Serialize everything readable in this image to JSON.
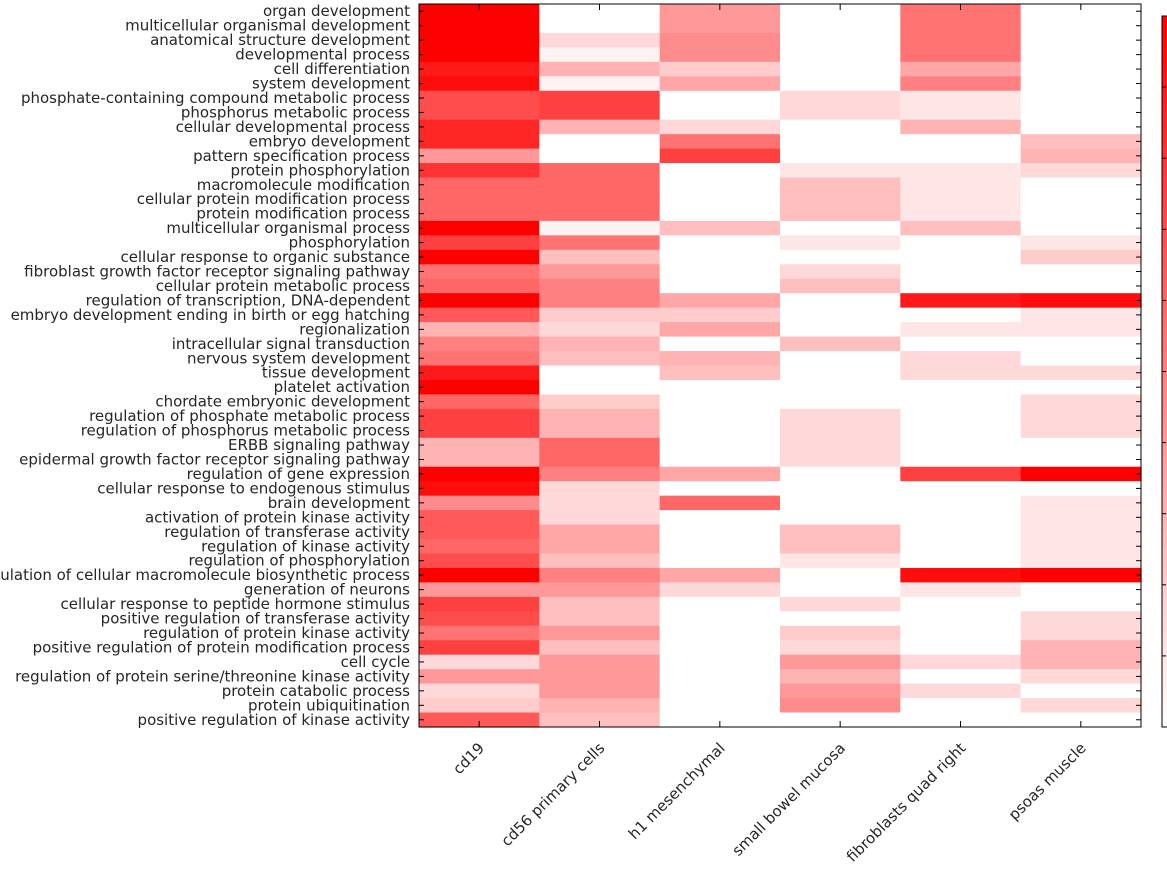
{
  "chart_data": {
    "type": "heatmap",
    "colormap": {
      "low": "#ffffff",
      "high": "#ff0000"
    },
    "value_range": [
      0,
      1
    ],
    "columns": [
      "cd19",
      "cd56 primary cells",
      "h1 mesenchymal",
      "small bowel mucosa",
      "fibroblasts quad right",
      "psoas muscle"
    ],
    "rows": [
      "organ development",
      "multicellular organismal development",
      "anatomical structure development",
      "developmental process",
      "cell differentiation",
      "system development",
      "phosphate-containing compound metabolic process",
      "phosphorus metabolic process",
      "cellular developmental process",
      "embryo development",
      "pattern specification process",
      "protein phosphorylation",
      "macromolecule modification",
      "cellular protein modification process",
      "protein modification process",
      "multicellular organismal process",
      "phosphorylation",
      "cellular response to organic substance",
      "fibroblast growth factor receptor signaling pathway",
      "cellular protein metabolic process",
      "regulation of transcription, DNA-dependent",
      "embryo development ending in birth or egg hatching",
      "regionalization",
      "intracellular signal transduction",
      "nervous system development",
      "tissue development",
      "platelet activation",
      "chordate embryonic development",
      "regulation of phosphate metabolic process",
      "regulation of phosphorus metabolic process",
      "ERBB signaling pathway",
      "epidermal growth factor receptor signaling pathway",
      "regulation of gene expression",
      "cellular response to endogenous stimulus",
      "brain development",
      "activation of protein kinase activity",
      "regulation of transferase activity",
      "regulation of kinase activity",
      "regulation of phosphorylation",
      "regulation of cellular macromolecule biosynthetic process",
      "generation of neurons",
      "cellular response to peptide hormone stimulus",
      "positive regulation of transferase activity",
      "regulation of protein kinase activity",
      "positive regulation of protein modification process",
      "cell cycle",
      "regulation of protein serine/threonine kinase activity",
      "protein catabolic process",
      "protein ubiquitination",
      "positive regulation of kinase activity"
    ],
    "values": [
      [
        1.0,
        0.0,
        0.4,
        0.0,
        0.55,
        0.0
      ],
      [
        1.0,
        0.0,
        0.4,
        0.0,
        0.55,
        0.0
      ],
      [
        1.0,
        0.15,
        0.45,
        0.0,
        0.55,
        0.0
      ],
      [
        1.0,
        0.05,
        0.45,
        0.0,
        0.55,
        0.0
      ],
      [
        0.9,
        0.3,
        0.2,
        0.0,
        0.35,
        0.0
      ],
      [
        0.95,
        0.05,
        0.35,
        0.0,
        0.5,
        0.0
      ],
      [
        0.7,
        0.75,
        0.0,
        0.15,
        0.1,
        0.0
      ],
      [
        0.7,
        0.75,
        0.0,
        0.15,
        0.1,
        0.0
      ],
      [
        0.85,
        0.3,
        0.15,
        0.0,
        0.3,
        0.0
      ],
      [
        0.85,
        0.0,
        0.55,
        0.0,
        0.0,
        0.25
      ],
      [
        0.4,
        0.0,
        0.75,
        0.0,
        0.0,
        0.3
      ],
      [
        0.8,
        0.6,
        0.0,
        0.1,
        0.1,
        0.15
      ],
      [
        0.6,
        0.6,
        0.0,
        0.25,
        0.1,
        0.0
      ],
      [
        0.6,
        0.6,
        0.0,
        0.25,
        0.1,
        0.0
      ],
      [
        0.6,
        0.6,
        0.0,
        0.25,
        0.1,
        0.0
      ],
      [
        1.0,
        0.05,
        0.25,
        0.0,
        0.25,
        0.0
      ],
      [
        0.75,
        0.55,
        0.0,
        0.1,
        0.0,
        0.1
      ],
      [
        1.0,
        0.25,
        0.0,
        0.0,
        0.0,
        0.2
      ],
      [
        0.55,
        0.4,
        0.0,
        0.15,
        0.0,
        0.0
      ],
      [
        0.6,
        0.5,
        0.0,
        0.25,
        0.0,
        0.0
      ],
      [
        1.0,
        0.5,
        0.35,
        0.0,
        0.9,
        0.95
      ],
      [
        0.65,
        0.2,
        0.2,
        0.0,
        0.0,
        0.1
      ],
      [
        0.3,
        0.15,
        0.35,
        0.0,
        0.1,
        0.1
      ],
      [
        0.5,
        0.3,
        0.0,
        0.25,
        0.0,
        0.0
      ],
      [
        0.55,
        0.25,
        0.3,
        0.0,
        0.15,
        0.0
      ],
      [
        0.9,
        0.0,
        0.25,
        0.0,
        0.15,
        0.15
      ],
      [
        1.0,
        0.0,
        0.0,
        0.0,
        0.0,
        0.0
      ],
      [
        0.6,
        0.2,
        0.0,
        0.0,
        0.0,
        0.15
      ],
      [
        0.75,
        0.3,
        0.0,
        0.15,
        0.0,
        0.15
      ],
      [
        0.75,
        0.3,
        0.0,
        0.15,
        0.0,
        0.15
      ],
      [
        0.3,
        0.6,
        0.0,
        0.15,
        0.0,
        0.0
      ],
      [
        0.3,
        0.6,
        0.0,
        0.15,
        0.0,
        0.0
      ],
      [
        1.0,
        0.5,
        0.35,
        0.0,
        0.75,
        1.0
      ],
      [
        0.95,
        0.15,
        0.0,
        0.0,
        0.0,
        0.0
      ],
      [
        0.45,
        0.15,
        0.6,
        0.0,
        0.0,
        0.1
      ],
      [
        0.65,
        0.15,
        0.0,
        0.0,
        0.0,
        0.1
      ],
      [
        0.65,
        0.35,
        0.0,
        0.25,
        0.0,
        0.1
      ],
      [
        0.6,
        0.35,
        0.0,
        0.25,
        0.0,
        0.1
      ],
      [
        0.7,
        0.25,
        0.0,
        0.1,
        0.0,
        0.1
      ],
      [
        1.0,
        0.5,
        0.35,
        0.0,
        0.95,
        1.0
      ],
      [
        0.4,
        0.4,
        0.15,
        0.0,
        0.1,
        0.0
      ],
      [
        0.75,
        0.25,
        0.0,
        0.15,
        0.0,
        0.0
      ],
      [
        0.7,
        0.25,
        0.0,
        0.0,
        0.0,
        0.15
      ],
      [
        0.55,
        0.4,
        0.0,
        0.2,
        0.0,
        0.15
      ],
      [
        0.75,
        0.25,
        0.0,
        0.15,
        0.0,
        0.3
      ],
      [
        0.15,
        0.4,
        0.0,
        0.4,
        0.15,
        0.3
      ],
      [
        0.4,
        0.4,
        0.0,
        0.3,
        0.0,
        0.15
      ],
      [
        0.15,
        0.4,
        0.0,
        0.4,
        0.15,
        0.0
      ],
      [
        0.2,
        0.3,
        0.0,
        0.45,
        0.0,
        0.15
      ],
      [
        0.65,
        0.25,
        0.0,
        0.0,
        0.0,
        0.0
      ]
    ]
  }
}
